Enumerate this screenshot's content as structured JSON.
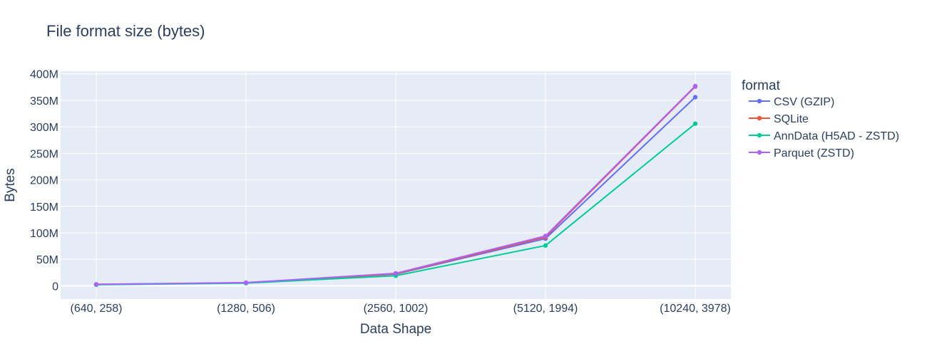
{
  "chart_data": {
    "type": "line",
    "title": "File format size (bytes)",
    "xlabel": "Data Shape",
    "ylabel": "Bytes",
    "categories": [
      "(640, 258)",
      "(1280, 506)",
      "(2560, 1002)",
      "(5120, 1994)",
      "(10240, 3978)"
    ],
    "ylim": [
      -25000000,
      405000000
    ],
    "yticks": [
      0,
      50000000,
      100000000,
      150000000,
      200000000,
      250000000,
      300000000,
      350000000,
      400000000
    ],
    "ytick_labels": [
      "0",
      "50M",
      "100M",
      "150M",
      "200M",
      "250M",
      "300M",
      "350M",
      "400M"
    ],
    "legend_title": "format",
    "legend_position": "right",
    "grid": true,
    "background": "#e5ecf6",
    "series": [
      {
        "name": "CSV (GZIP)",
        "color": "#636efa",
        "values": [
          2500000,
          5500000,
          22000000,
          89000000,
          356000000
        ]
      },
      {
        "name": "SQLite",
        "color": "#ef553b",
        "values": [
          2500000,
          5500000,
          22500000,
          92000000,
          376000000
        ]
      },
      {
        "name": "AnnData (H5AD - ZSTD)",
        "color": "#00cc96",
        "values": [
          2000000,
          5000000,
          19000000,
          76000000,
          306000000
        ]
      },
      {
        "name": "Parquet (ZSTD)",
        "color": "#ab63fa",
        "values": [
          2800000,
          6000000,
          23500000,
          94000000,
          377000000
        ]
      }
    ]
  }
}
